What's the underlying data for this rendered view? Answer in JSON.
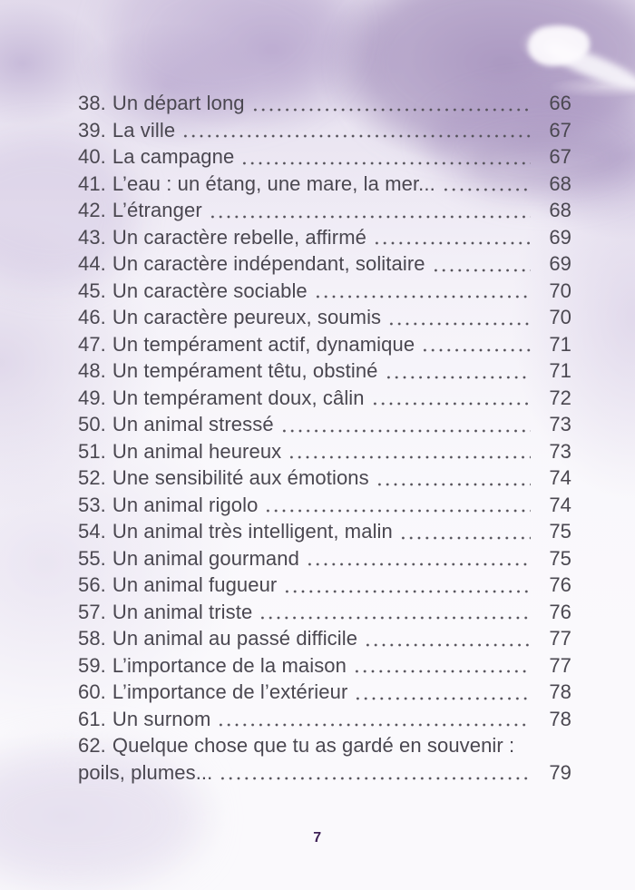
{
  "document": {
    "kind": "table-of-contents-page",
    "language": "fr",
    "footer": {
      "page_number": "7"
    }
  },
  "toc": {
    "entries": [
      {
        "number": "38.",
        "title": "Un départ long",
        "page": "66"
      },
      {
        "number": "39.",
        "title": "La ville",
        "page": "67"
      },
      {
        "number": "40.",
        "title": "La campagne",
        "page": "67"
      },
      {
        "number": "41.",
        "title": "L’eau : un étang, une mare, la mer...",
        "page": "68"
      },
      {
        "number": "42.",
        "title": "L’étranger",
        "page": "68"
      },
      {
        "number": "43.",
        "title": "Un caractère rebelle, affirmé",
        "page": "69"
      },
      {
        "number": "44.",
        "title": "Un caractère indépendant, solitaire",
        "page": "69"
      },
      {
        "number": "45.",
        "title": "Un caractère sociable",
        "page": "70"
      },
      {
        "number": "46.",
        "title": "Un caractère peureux, soumis",
        "page": "70"
      },
      {
        "number": "47.",
        "title": "Un tempérament actif, dynamique",
        "page": "71"
      },
      {
        "number": "48.",
        "title": "Un tempérament têtu, obstiné",
        "page": "71"
      },
      {
        "number": "49.",
        "title": "Un tempérament doux, câlin",
        "page": "72"
      },
      {
        "number": "50.",
        "title": "Un animal stressé",
        "page": "73"
      },
      {
        "number": "51.",
        "title": "Un animal heureux",
        "page": "73"
      },
      {
        "number": "52.",
        "title": "Une sensibilité aux émotions",
        "page": "74"
      },
      {
        "number": "53.",
        "title": "Un animal rigolo",
        "page": "74"
      },
      {
        "number": "54.",
        "title": "Un animal très intelligent, malin",
        "page": "75"
      },
      {
        "number": "55.",
        "title": "Un animal gourmand",
        "page": "75"
      },
      {
        "number": "56.",
        "title": "Un animal fugueur",
        "page": "76"
      },
      {
        "number": "57.",
        "title": "Un animal triste",
        "page": "76"
      },
      {
        "number": "58.",
        "title": "Un animal au passé difficile",
        "page": "77"
      },
      {
        "number": "59.",
        "title": "L’importance de la maison",
        "page": "77"
      },
      {
        "number": "60.",
        "title": "L’importance de l’extérieur",
        "page": "78"
      },
      {
        "number": "61.",
        "title": "Un surnom",
        "page": "78"
      },
      {
        "number": "62.",
        "title": "Quelque chose que tu as gardé en souvenir :",
        "page": null
      },
      {
        "number": "",
        "title": "poils, plumes...",
        "page": "79"
      }
    ]
  },
  "colors": {
    "text": "#4a4750",
    "dot_leader": "#55525a",
    "footer_page_number": "#3e2156",
    "background_base": "#faf9fc",
    "watercolor_dark": "#9a86b4",
    "watercolor_mid": "#c4b5d6",
    "watercolor_light": "#efeaf4"
  }
}
